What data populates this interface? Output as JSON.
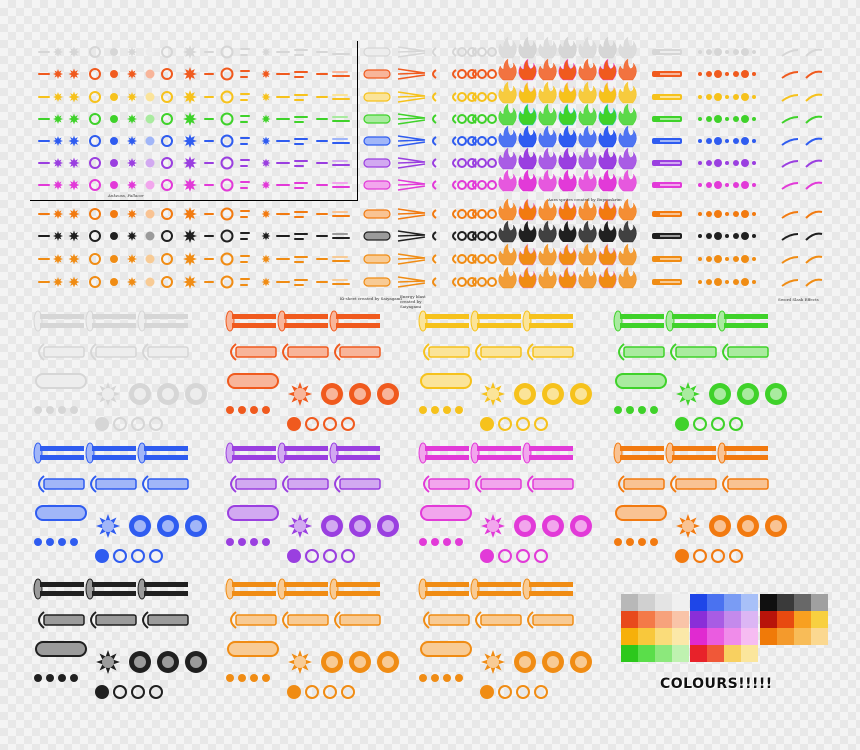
{
  "credits": {
    "ankeuss": "Ankeuss, Fallacor",
    "aura": "Aura sprites created by Bupnuskrim",
    "ki": "Ki-sheet created by Saiyagami",
    "energy": "Energy blast created by Saiyagami",
    "smash": "Sword Slash Effects"
  },
  "palette_title": "COLOURS!!!!!",
  "colors": {
    "white": "#d6d6d6",
    "red": "#f05a1e",
    "yellow": "#f6c21c",
    "green": "#3fd22a",
    "blue": "#2f5cf0",
    "purple": "#9a3fe0",
    "pink": "#e23ad8",
    "fire": "#f27a10",
    "black": "#202020",
    "orange": "#f08c14"
  },
  "top_rows": [
    "white",
    "red",
    "yellow",
    "green",
    "blue",
    "purple",
    "pink"
  ],
  "bottom_rows": [
    "fire",
    "black",
    "orange",
    "orange"
  ],
  "blast_panels": [
    "white",
    "red",
    "yellow",
    "green",
    "blue",
    "purple",
    "pink",
    "fire",
    "black",
    "orange",
    "orange"
  ],
  "swatches": [
    [
      "#b8b8b8",
      "#d0d0d0",
      "#e4e4e4",
      "#f0f0f0",
      "#e84a1c",
      "#f47a48",
      "#f7a27c",
      "#f9c4a8",
      "#f6b00a",
      "#f8c83c",
      "#fadc7a",
      "#fbe8a8",
      "#2cc81c",
      "#5ade4a",
      "#8ce87c",
      "#bff2b0"
    ],
    [
      "#1e46e8",
      "#4a72f0",
      "#7a9cf4",
      "#a8c0f8",
      "#8a2ed8",
      "#a85ce4",
      "#c48aec",
      "#dcb6f4",
      "#e02ad0",
      "#ea5ce0",
      "#f08cea",
      "#f6bcf2",
      "#e8222a",
      "#f05838",
      "#f8d060",
      "#fbe69c"
    ],
    [
      "#101010",
      "#3a3a3a",
      "#686868",
      "#a0a0a0",
      "#b8140a",
      "#e84a10",
      "#f8a020",
      "#f8d040",
      "#f07a08",
      "#f49a2c",
      "#f8bc58",
      "#fbd890"
    ]
  ]
}
